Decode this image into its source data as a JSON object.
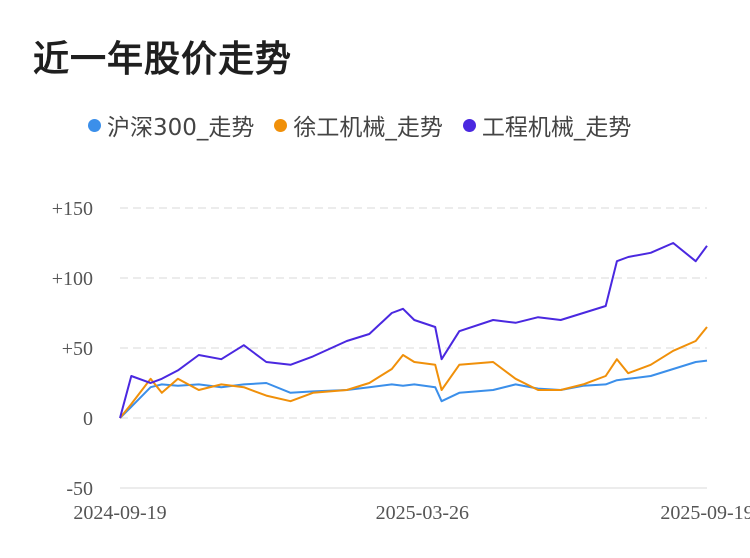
{
  "title": "近一年股价走势",
  "colors": {
    "hs300": "#3b8fea",
    "xcmg": "#f0900a",
    "machinery": "#4a28e0",
    "grid": "#e6e6e6"
  },
  "chart_data": {
    "type": "line",
    "title": "近一年股价走势",
    "xlabel": "",
    "ylabel": "",
    "ylim": [
      -50,
      150
    ],
    "y_ticks": [
      {
        "value": 150,
        "label": "+150"
      },
      {
        "value": 100,
        "label": "+100"
      },
      {
        "value": 50,
        "label": "+50"
      },
      {
        "value": 0,
        "label": "0"
      },
      {
        "value": -50,
        "label": "-50"
      }
    ],
    "x_ticks": [
      "2024-09-19",
      "2025-03-26",
      "2025-09-19"
    ],
    "x": [
      "2024-09-19",
      "2024-09-26",
      "2024-10-08",
      "2024-10-15",
      "2024-10-25",
      "2024-11-07",
      "2024-11-21",
      "2024-12-05",
      "2024-12-19",
      "2025-01-03",
      "2025-01-17",
      "2025-02-07",
      "2025-02-21",
      "2025-03-07",
      "2025-03-14",
      "2025-03-21",
      "2025-04-03",
      "2025-04-07",
      "2025-04-18",
      "2025-05-09",
      "2025-05-23",
      "2025-06-06",
      "2025-06-20",
      "2025-07-04",
      "2025-07-18",
      "2025-07-25",
      "2025-08-01",
      "2025-08-15",
      "2025-08-29",
      "2025-09-12",
      "2025-09-19"
    ],
    "series": [
      {
        "name": "沪深300_走势",
        "color_key": "hs300",
        "values": [
          0,
          8,
          22,
          24,
          23,
          24,
          22,
          24,
          25,
          18,
          19,
          20,
          22,
          24,
          23,
          24,
          22,
          12,
          18,
          20,
          24,
          21,
          20,
          23,
          24,
          27,
          28,
          30,
          35,
          40,
          41
        ]
      },
      {
        "name": "徐工机械_走势",
        "color_key": "xcmg",
        "values": [
          0,
          10,
          28,
          18,
          28,
          20,
          24,
          22,
          16,
          12,
          18,
          20,
          25,
          35,
          45,
          40,
          38,
          20,
          38,
          40,
          28,
          20,
          20,
          24,
          30,
          42,
          32,
          38,
          48,
          55,
          65
        ]
      },
      {
        "name": "工程机械_走势",
        "color_key": "machinery",
        "values": [
          0,
          30,
          25,
          28,
          34,
          45,
          42,
          52,
          40,
          38,
          44,
          55,
          60,
          75,
          78,
          70,
          65,
          42,
          62,
          70,
          68,
          72,
          70,
          75,
          80,
          112,
          115,
          118,
          125,
          112,
          123
        ]
      }
    ],
    "legend_position": "top",
    "grid": true
  }
}
